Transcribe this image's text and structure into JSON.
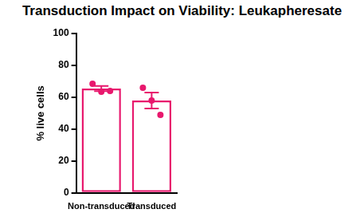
{
  "chart_data": {
    "type": "bar",
    "title": "Transduction Impact on Viability: Leukapheresate",
    "y_label": "% live cells",
    "categories": [
      "Non-transduced",
      "Transduced"
    ],
    "values": [
      65.5,
      58
    ],
    "errors": [
      1.6,
      5
    ],
    "points": [
      [
        68.5,
        63.5,
        64
      ],
      [
        66,
        58,
        49
      ]
    ],
    "color": "#e8186d",
    "ylim": [
      0,
      100
    ],
    "yticks": [
      0,
      20,
      40,
      60,
      80,
      100
    ],
    "grid": false
  }
}
